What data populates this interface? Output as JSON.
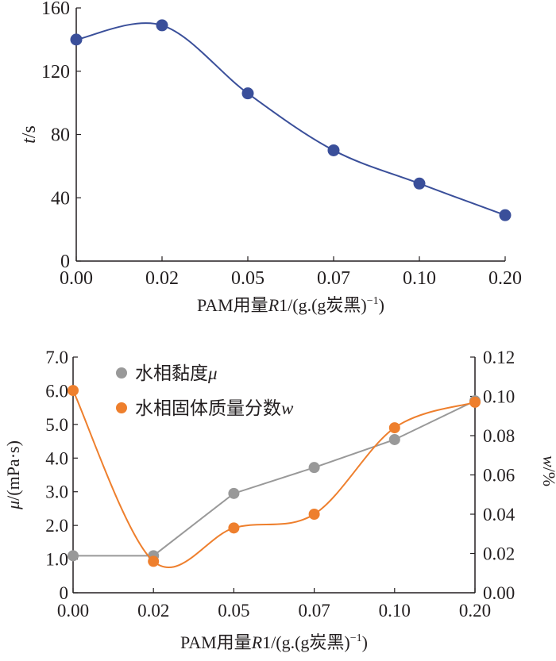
{
  "chart_data": [
    {
      "type": "line",
      "x_categories": [
        "0.00",
        "0.02",
        "0.05",
        "0.07",
        "0.10",
        "0.20"
      ],
      "series": [
        {
          "values": [
            140,
            149,
            106,
            70,
            49,
            29
          ],
          "color": "#3a4f9a",
          "marker": "circle",
          "smooth": true
        }
      ],
      "ylabel": {
        "italic": "t",
        "rest": "/s"
      },
      "xlabel": {
        "pre": "PAM用量",
        "italic": "R",
        "post": "1/(g.(g炭黑)",
        "sup": "−1",
        "end": ")"
      },
      "y_ticks": [
        "0",
        "40",
        "80",
        "120",
        "160"
      ],
      "ylim": [
        0,
        160
      ],
      "grid": false
    },
    {
      "type": "line",
      "x_categories": [
        "0.00",
        "0.02",
        "0.05",
        "0.07",
        "0.10",
        "0.20"
      ],
      "series": [
        {
          "name": "水相黏度",
          "name_symbol": "μ",
          "axis": "left",
          "values": [
            1.1,
            1.1,
            2.95,
            3.72,
            4.55,
            5.7
          ],
          "color": "#999999",
          "marker": "circle",
          "smooth": false
        },
        {
          "name": "水相固体质量分数",
          "name_symbol": "w",
          "axis": "right",
          "values": [
            0.103,
            0.016,
            0.033,
            0.04,
            0.084,
            0.097
          ],
          "color": "#ee7f2d",
          "marker": "circle",
          "smooth": true
        }
      ],
      "ylabel_left": {
        "italic": "μ",
        "rest": "/(mPa·s)"
      },
      "ylabel_right": {
        "italic": "w",
        "rest": "/%"
      },
      "xlabel": {
        "pre": "PAM用量",
        "italic": "R",
        "post": "1/(g.(g炭黑)",
        "sup": "−1",
        "end": ")"
      },
      "y_left_ticks": [
        "0",
        "1.0",
        "2.0",
        "3.0",
        "4.0",
        "5.0",
        "6.0",
        "7.0"
      ],
      "y_right_ticks": [
        "0.00",
        "0.02",
        "0.04",
        "0.06",
        "0.08",
        "0.10",
        "0.12"
      ],
      "ylim_left": [
        0,
        7
      ],
      "ylim_right": [
        0,
        0.12
      ],
      "legend_position": "top-left",
      "grid": false
    }
  ]
}
